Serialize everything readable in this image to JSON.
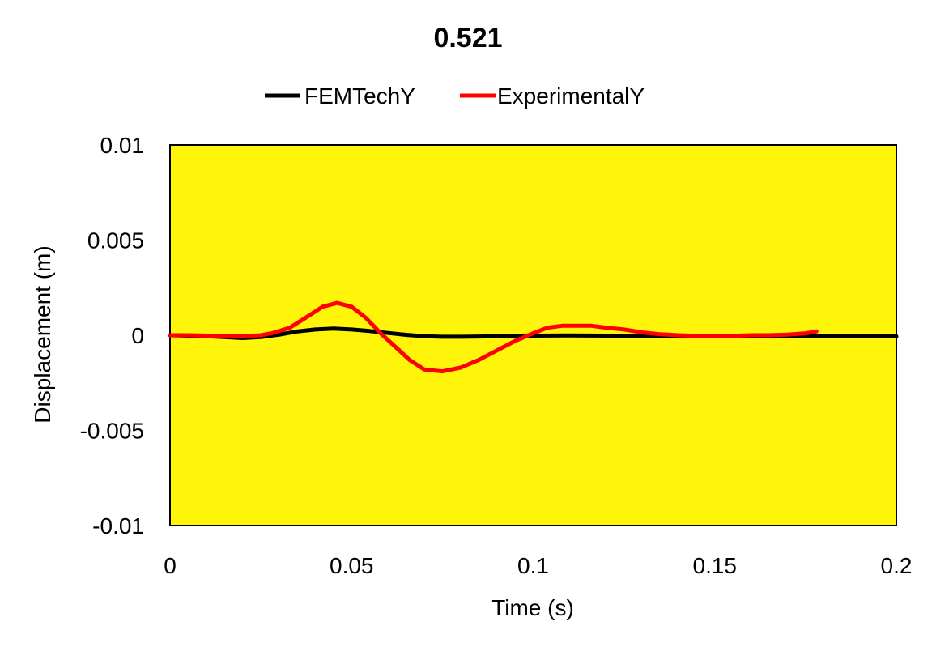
{
  "chart_data": {
    "type": "line",
    "title": "0.521",
    "xlabel": "Time (s)",
    "ylabel": "Displacement (m)",
    "xlim": [
      0,
      0.2
    ],
    "ylim": [
      -0.01,
      0.01
    ],
    "x_ticks": [
      "0",
      "0.05",
      "0.1",
      "0.15",
      "0.2"
    ],
    "y_ticks": [
      "0.01",
      "0.005",
      "0",
      "-0.005",
      "-0.01"
    ],
    "x_tick_values": [
      0,
      0.05,
      0.1,
      0.15,
      0.2
    ],
    "y_tick_values": [
      0.01,
      0.005,
      0,
      -0.005,
      -0.01
    ],
    "grid": false,
    "legend_position": "top",
    "plot_background": "#FFF50A",
    "series": [
      {
        "name": "FEMTechY",
        "color": "#000000",
        "x": [
          0,
          0.005,
          0.01,
          0.015,
          0.02,
          0.025,
          0.03,
          0.035,
          0.04,
          0.045,
          0.05,
          0.055,
          0.06,
          0.065,
          0.07,
          0.075,
          0.08,
          0.085,
          0.09,
          0.095,
          0.1,
          0.11,
          0.12,
          0.13,
          0.14,
          0.15,
          0.16,
          0.17,
          0.18,
          0.19,
          0.2
        ],
        "y": [
          0,
          -2e-05,
          -5e-05,
          -0.0001,
          -0.00015,
          -0.0001,
          3e-05,
          0.0002,
          0.0003,
          0.00035,
          0.0003,
          0.00022,
          0.00012,
          2e-05,
          -5e-05,
          -8e-05,
          -8e-05,
          -7e-05,
          -5e-05,
          -3e-05,
          -2e-05,
          -1e-05,
          -2e-05,
          -3e-05,
          -4e-05,
          -5e-05,
          -5e-05,
          -5e-05,
          -5e-05,
          -6e-05,
          -6e-05
        ]
      },
      {
        "name": "ExperimentalY",
        "color": "#FF0000",
        "x": [
          0,
          0.005,
          0.01,
          0.015,
          0.02,
          0.025,
          0.028,
          0.033,
          0.038,
          0.042,
          0.046,
          0.05,
          0.054,
          0.058,
          0.062,
          0.066,
          0.07,
          0.075,
          0.08,
          0.085,
          0.09,
          0.095,
          0.1,
          0.104,
          0.108,
          0.112,
          0.116,
          0.12,
          0.125,
          0.13,
          0.135,
          0.14,
          0.145,
          0.15,
          0.155,
          0.16,
          0.165,
          0.17,
          0.175,
          0.178
        ],
        "y": [
          0,
          0,
          -2e-05,
          -5e-05,
          -5e-05,
          0,
          0.0001,
          0.0004,
          0.001,
          0.0015,
          0.0017,
          0.0015,
          0.0009,
          0.0001,
          -0.0006,
          -0.0013,
          -0.0018,
          -0.0019,
          -0.0017,
          -0.0013,
          -0.0008,
          -0.0003,
          0.0001,
          0.0004,
          0.0005,
          0.0005,
          0.0005,
          0.0004,
          0.0003,
          0.00015,
          5e-05,
          0,
          -3e-05,
          -5e-05,
          -3e-05,
          0,
          0,
          3e-05,
          0.0001,
          0.0002
        ]
      }
    ]
  }
}
